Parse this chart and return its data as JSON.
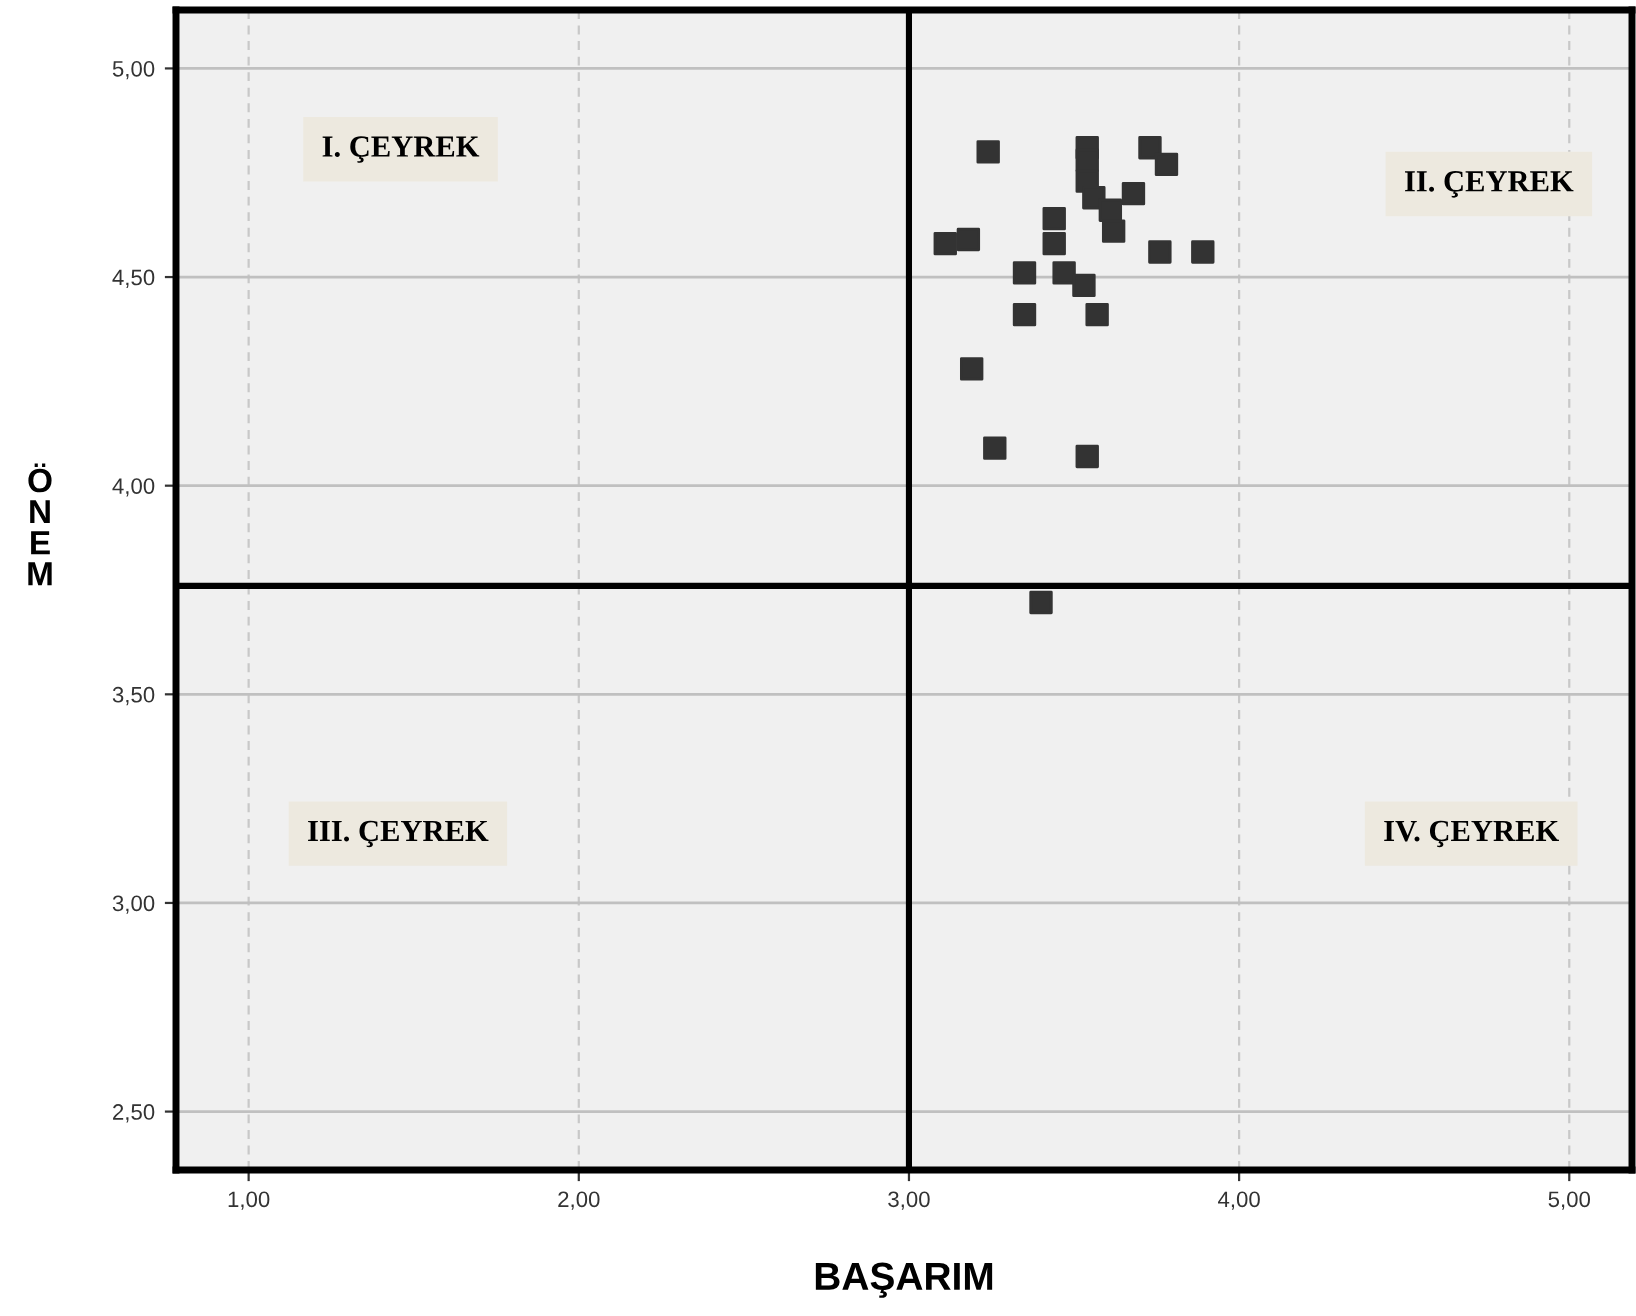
{
  "chart_data": {
    "type": "scatter",
    "xlabel": "BAŞARIM",
    "ylabel": "ÖNEM",
    "annotations": [
      "I. ÇEYREK",
      "II. ÇEYREK",
      "III. ÇEYREK",
      "IV. ÇEYREK"
    ],
    "x": [
      3.24,
      3.54,
      3.54,
      3.73,
      3.78,
      3.54,
      3.56,
      3.68,
      3.61,
      3.44,
      3.62,
      3.11,
      3.18,
      3.44,
      3.76,
      3.89,
      3.35,
      3.47,
      3.53,
      3.35,
      3.57,
      3.19,
      3.26,
      3.54,
      3.4
    ],
    "series": [
      {
        "color": "#333333",
        "values": [
          4.8,
          4.81,
          4.78,
          4.81,
          4.77,
          4.73,
          4.69,
          4.7,
          4.66,
          4.64,
          4.61,
          4.58,
          4.59,
          4.58,
          4.56,
          4.56,
          4.51,
          4.51,
          4.48,
          4.41,
          4.41,
          4.28,
          4.09,
          4.07,
          3.72
        ]
      }
    ],
    "marker": "square",
    "grid": true,
    "xlim": [
      0.78,
      5.19
    ],
    "ylim": [
      2.36,
      5.14
    ],
    "xticks": [
      {
        "value": 1,
        "label": "1,00"
      },
      {
        "value": 2,
        "label": "2,00"
      },
      {
        "value": 3,
        "label": "3,00"
      },
      {
        "value": 4,
        "label": "4,00"
      },
      {
        "value": 5,
        "label": "5,00"
      }
    ],
    "yticks": [
      {
        "value": 2.5,
        "label": "2,50"
      },
      {
        "value": 3,
        "label": "3,00"
      },
      {
        "value": 3.5,
        "label": "3,50"
      },
      {
        "value": 4,
        "label": "4,00"
      },
      {
        "value": 4.5,
        "label": "4,50"
      },
      {
        "value": 5,
        "label": "5,00"
      }
    ],
    "ref_lines": [
      {
        "axis": "x",
        "value": 3.0,
        "color": "#000000"
      },
      {
        "axis": "y",
        "value": 3.76,
        "color": "#000000"
      }
    ]
  }
}
